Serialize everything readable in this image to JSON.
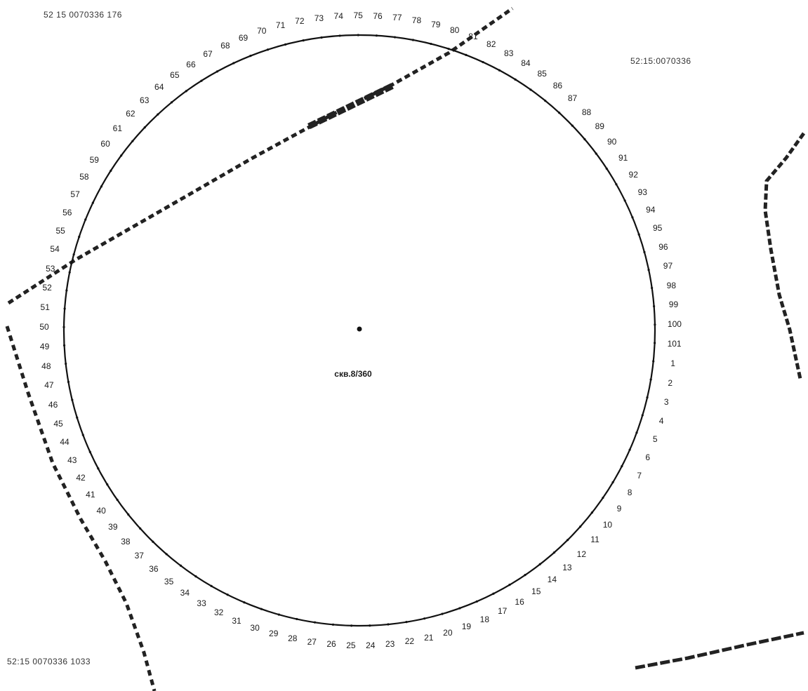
{
  "parcels": {
    "top_left": "52 15 0070336 176",
    "top_right": "52:15:0070336",
    "bottom_left": "52:15 0070336 1033"
  },
  "well_label": "скв.8/360",
  "point_labels": [
    "1",
    "2",
    "3",
    "4",
    "5",
    "6",
    "7",
    "8",
    "9",
    "10",
    "11",
    "12",
    "13",
    "14",
    "15",
    "16",
    "17",
    "18",
    "19",
    "20",
    "21",
    "22",
    "23",
    "24",
    "25",
    "26",
    "27",
    "28",
    "29",
    "30",
    "31",
    "32",
    "33",
    "34",
    "35",
    "36",
    "37",
    "38",
    "39",
    "40",
    "41",
    "42",
    "43",
    "44",
    "45",
    "46",
    "47",
    "48",
    "49",
    "50",
    "51",
    "52",
    "53",
    "54",
    "55",
    "56",
    "57",
    "58",
    "59",
    "60",
    "61",
    "62",
    "63",
    "64",
    "65",
    "66",
    "67",
    "68",
    "69",
    "70",
    "71",
    "72",
    "73",
    "74",
    "75",
    "76",
    "77",
    "78",
    "79",
    "80",
    "81",
    "82",
    "83",
    "84",
    "85",
    "86",
    "87",
    "88",
    "89",
    "90",
    "91",
    "92",
    "93",
    "94",
    "95",
    "96",
    "97",
    "98",
    "99",
    "100",
    "101"
  ],
  "colors": {
    "line": "#111111",
    "boundary": "#222222",
    "background": "#ffffff"
  }
}
